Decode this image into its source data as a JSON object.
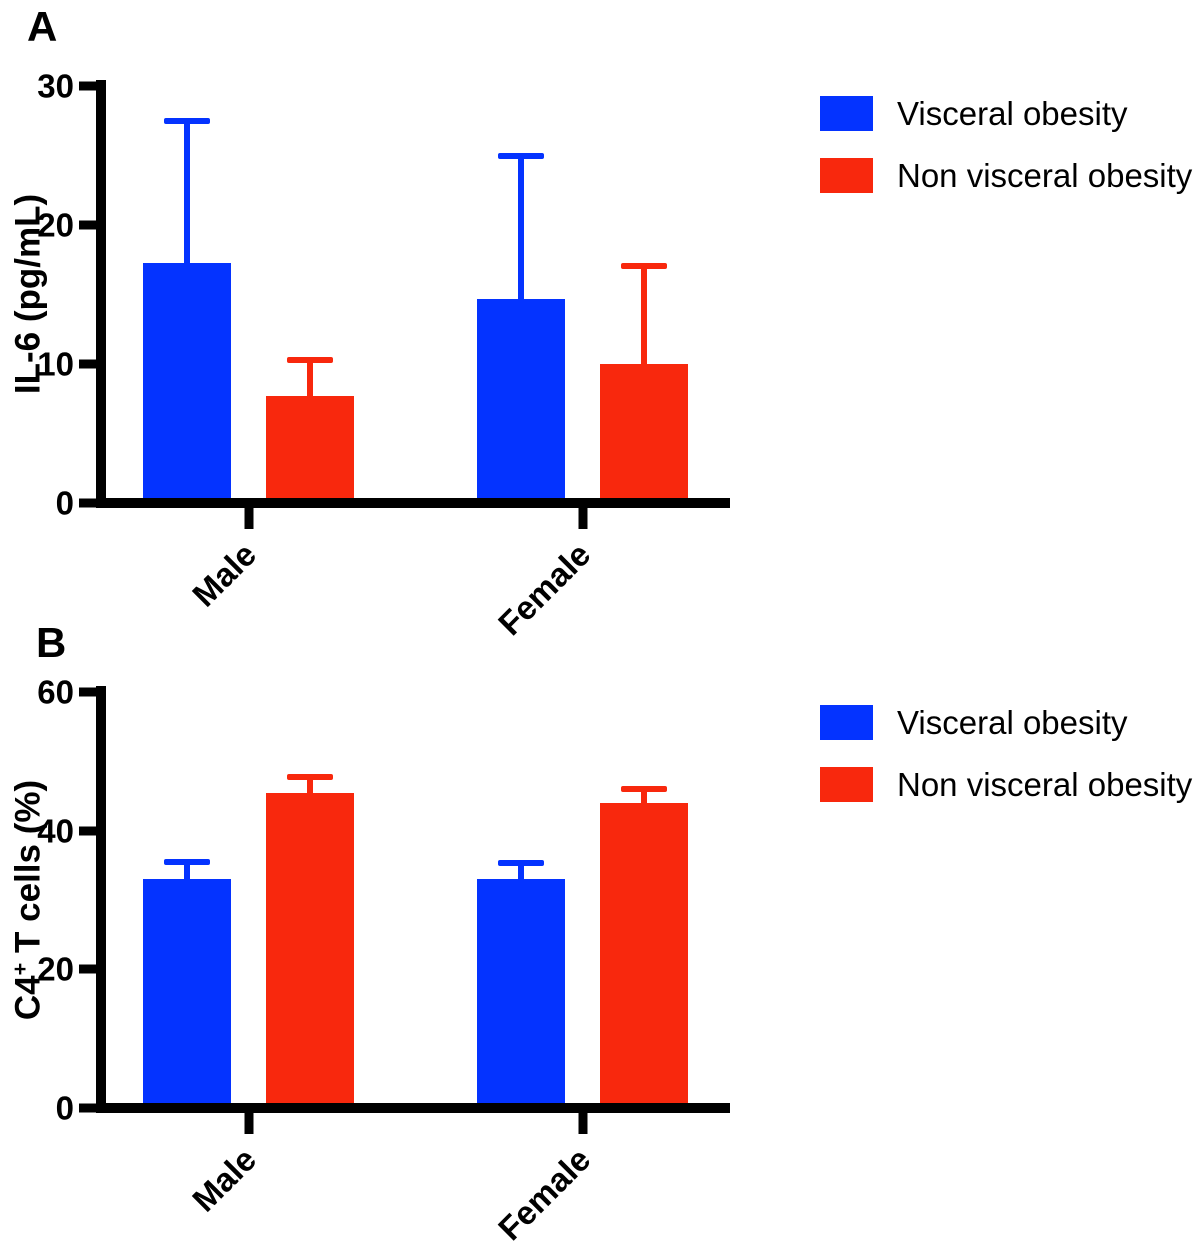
{
  "figure": {
    "background_color": "#FFFFFF",
    "panel_labels": [
      "A",
      "B"
    ]
  },
  "chart_data": [
    {
      "type": "bar",
      "panel": "A",
      "panel_label": "A",
      "title": "",
      "xlabel": "",
      "ylabel": "IL-6 (pg/mL)",
      "ylabel_parts": {
        "pre": "IL-6 (pg/mL)",
        "sup": "",
        "post": ""
      },
      "categories": [
        "Male",
        "Female"
      ],
      "series": [
        {
          "name": "Visceral obesity",
          "color": "#0433FF",
          "values": [
            17.3,
            14.7
          ],
          "error_top": [
            27.7,
            25.2
          ]
        },
        {
          "name": "Non visceral obesity",
          "color": "#F8280D",
          "values": [
            7.7,
            10.0
          ],
          "error_top": [
            10.5,
            17.3
          ]
        }
      ],
      "ylim": [
        0,
        30
      ],
      "yticks": [
        0,
        10,
        20,
        30
      ],
      "grid": false,
      "error_bars": "upper-only",
      "legend_position": "right"
    },
    {
      "type": "bar",
      "panel": "B",
      "panel_label": "B",
      "title": "",
      "xlabel": "",
      "ylabel": "C4+ T cells (%)",
      "ylabel_parts": {
        "pre": "C4",
        "sup": "+",
        "post": " T cells (%)"
      },
      "categories": [
        "Male",
        "Female"
      ],
      "series": [
        {
          "name": "Visceral obesity",
          "color": "#0433FF",
          "values": [
            33.1,
            33.0
          ],
          "error_top": [
            35.9,
            35.8
          ]
        },
        {
          "name": "Non visceral obesity",
          "color": "#F8280D",
          "values": [
            45.5,
            44.0
          ],
          "error_top": [
            48.2,
            46.4
          ]
        }
      ],
      "ylim": [
        0,
        60
      ],
      "yticks": [
        0,
        20,
        40,
        60
      ],
      "grid": false,
      "error_bars": "upper-only",
      "legend_position": "right"
    }
  ]
}
